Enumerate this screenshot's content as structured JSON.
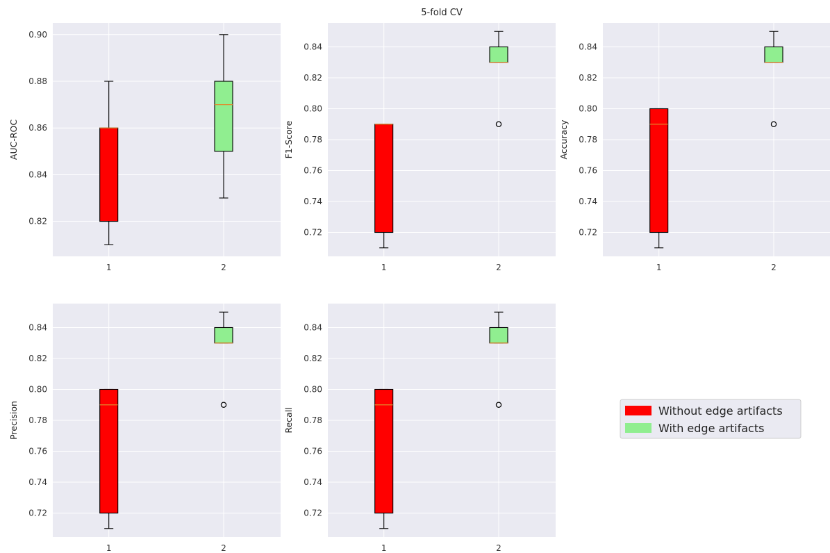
{
  "figure_title": "5-fold CV",
  "colors": {
    "panel_bg": "#eaeaf2",
    "grid": "#ffffff",
    "without": "#ff0000",
    "with": "#90ee90",
    "median": "#e08a2c",
    "edge": "#000000"
  },
  "legend": {
    "placement": "center-right",
    "entries": [
      {
        "label": "Without edge artifacts",
        "color": "#ff0000"
      },
      {
        "label": "With edge artifacts",
        "color": "#90ee90"
      }
    ]
  },
  "chart_data": [
    {
      "type": "box",
      "ylabel": "AUC-ROC",
      "categories": [
        "1",
        "2"
      ],
      "ylim": [
        0.805,
        0.905
      ],
      "yticks": [
        0.82,
        0.84,
        0.86,
        0.88,
        0.9
      ],
      "ytick_labels": [
        "0.82",
        "0.84",
        "0.86",
        "0.88",
        "0.90"
      ],
      "grid": true,
      "boxes": [
        {
          "category": "1",
          "series": "Without edge artifacts",
          "whislo": 0.81,
          "q1": 0.82,
          "med": 0.86,
          "q3": 0.86,
          "whishi": 0.88,
          "fliers": []
        },
        {
          "category": "2",
          "series": "With edge artifacts",
          "whislo": 0.83,
          "q1": 0.85,
          "med": 0.87,
          "q3": 0.88,
          "whishi": 0.9,
          "fliers": []
        }
      ]
    },
    {
      "type": "box",
      "title": "5-fold CV",
      "ylabel": "F1-Score",
      "categories": [
        "1",
        "2"
      ],
      "ylim": [
        0.7045,
        0.8555
      ],
      "yticks": [
        0.72,
        0.74,
        0.76,
        0.78,
        0.8,
        0.82,
        0.84
      ],
      "ytick_labels": [
        "0.72",
        "0.74",
        "0.76",
        "0.78",
        "0.80",
        "0.82",
        "0.84"
      ],
      "grid": true,
      "boxes": [
        {
          "category": "1",
          "series": "Without edge artifacts",
          "whislo": 0.71,
          "q1": 0.72,
          "med": 0.79,
          "q3": 0.79,
          "whishi": 0.79,
          "fliers": []
        },
        {
          "category": "2",
          "series": "With edge artifacts",
          "whislo": 0.83,
          "q1": 0.83,
          "med": 0.83,
          "q3": 0.84,
          "whishi": 0.85,
          "fliers": [
            0.79
          ]
        }
      ]
    },
    {
      "type": "box",
      "ylabel": "Accuracy",
      "categories": [
        "1",
        "2"
      ],
      "ylim": [
        0.7045,
        0.8555
      ],
      "yticks": [
        0.72,
        0.74,
        0.76,
        0.78,
        0.8,
        0.82,
        0.84
      ],
      "ytick_labels": [
        "0.72",
        "0.74",
        "0.76",
        "0.78",
        "0.80",
        "0.82",
        "0.84"
      ],
      "grid": true,
      "boxes": [
        {
          "category": "1",
          "series": "Without edge artifacts",
          "whislo": 0.71,
          "q1": 0.72,
          "med": 0.79,
          "q3": 0.8,
          "whishi": 0.8,
          "fliers": []
        },
        {
          "category": "2",
          "series": "With edge artifacts",
          "whislo": 0.83,
          "q1": 0.83,
          "med": 0.83,
          "q3": 0.84,
          "whishi": 0.85,
          "fliers": [
            0.79
          ]
        }
      ]
    },
    {
      "type": "box",
      "ylabel": "Precision",
      "categories": [
        "1",
        "2"
      ],
      "ylim": [
        0.7045,
        0.8555
      ],
      "yticks": [
        0.72,
        0.74,
        0.76,
        0.78,
        0.8,
        0.82,
        0.84
      ],
      "ytick_labels": [
        "0.72",
        "0.74",
        "0.76",
        "0.78",
        "0.80",
        "0.82",
        "0.84"
      ],
      "grid": true,
      "boxes": [
        {
          "category": "1",
          "series": "Without edge artifacts",
          "whislo": 0.71,
          "q1": 0.72,
          "med": 0.79,
          "q3": 0.8,
          "whishi": 0.8,
          "fliers": []
        },
        {
          "category": "2",
          "series": "With edge artifacts",
          "whislo": 0.83,
          "q1": 0.83,
          "med": 0.83,
          "q3": 0.84,
          "whishi": 0.85,
          "fliers": [
            0.79
          ]
        }
      ]
    },
    {
      "type": "box",
      "ylabel": "Recall",
      "categories": [
        "1",
        "2"
      ],
      "ylim": [
        0.7045,
        0.8555
      ],
      "yticks": [
        0.72,
        0.74,
        0.76,
        0.78,
        0.8,
        0.82,
        0.84
      ],
      "ytick_labels": [
        "0.72",
        "0.74",
        "0.76",
        "0.78",
        "0.80",
        "0.82",
        "0.84"
      ],
      "grid": true,
      "boxes": [
        {
          "category": "1",
          "series": "Without edge artifacts",
          "whislo": 0.71,
          "q1": 0.72,
          "med": 0.79,
          "q3": 0.8,
          "whishi": 0.8,
          "fliers": []
        },
        {
          "category": "2",
          "series": "With edge artifacts",
          "whislo": 0.83,
          "q1": 0.83,
          "med": 0.83,
          "q3": 0.84,
          "whishi": 0.85,
          "fliers": [
            0.79
          ]
        }
      ]
    }
  ]
}
